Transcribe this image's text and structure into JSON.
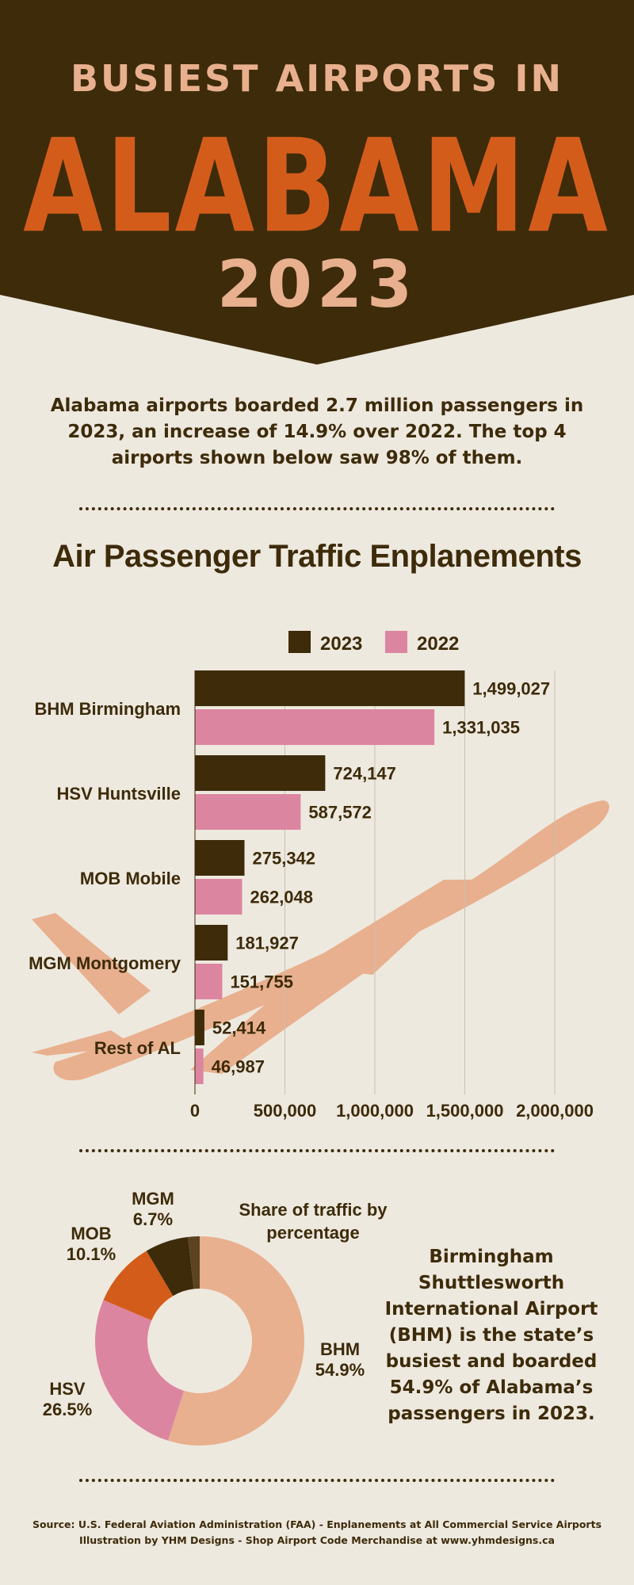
{
  "header": {
    "line1": "BUSIEST AIRPORTS IN",
    "line2": "ALABAMA",
    "line3": "2023"
  },
  "intro": "Alabama airports boarded 2.7 million passengers in 2023, an increase of 14.9% over 2022. The top 4 airports shown below saw 98% of them.",
  "colors": {
    "dark_brown": "#3D2B0A",
    "orange": "#D45C1A",
    "peach": "#E8B08E",
    "pink": "#DC85A0",
    "background": "#EEE9DF"
  },
  "chart_data": [
    {
      "type": "bar",
      "orientation": "horizontal",
      "title": "Air Passenger Traffic Enplanements",
      "categories": [
        "BHM Birmingham",
        "HSV Huntsville",
        "MOB Mobile",
        "MGM Montgomery",
        "Rest of AL"
      ],
      "series": [
        {
          "name": "2023",
          "values": [
            1499027,
            724147,
            275342,
            181927,
            52414
          ],
          "value_labels": [
            "1,499,027",
            "724,147",
            "275,342",
            "181,927",
            "52,414"
          ],
          "color": "#3D2B0A"
        },
        {
          "name": "2022",
          "values": [
            1331035,
            587572,
            262048,
            151755,
            46987
          ],
          "value_labels": [
            "1,331,035",
            "587,572",
            "262,048",
            "151,755",
            "46,987"
          ],
          "color": "#DC85A0"
        }
      ],
      "xlim": [
        0,
        2000000
      ],
      "xticks": [
        0,
        500000,
        1000000,
        1500000,
        2000000
      ],
      "xtick_labels": [
        "0",
        "500,000",
        "1,000,000",
        "1,500,000",
        "2,000,000"
      ],
      "grid": "vertical",
      "legend": "top"
    },
    {
      "type": "pie",
      "style": "donut",
      "title": "Share of traffic by percentage",
      "slices": [
        {
          "label": "BHM",
          "value": 54.9,
          "value_label": "54.9%",
          "color": "#E8B08E"
        },
        {
          "label": "HSV",
          "value": 26.5,
          "value_label": "26.5%",
          "color": "#DC85A0"
        },
        {
          "label": "MOB",
          "value": 10.1,
          "value_label": "10.1%",
          "color": "#D45C1A"
        },
        {
          "label": "MGM",
          "value": 6.7,
          "value_label": "6.7%",
          "color": "#3D2B0A"
        },
        {
          "label": "",
          "value": 1.8,
          "color": "#5C4420"
        }
      ]
    }
  ],
  "side_note": "Birmingham Shuttlesworth International Airport (BHM) is the state’s busiest and boarded 54.9% of Alabama’s passengers in 2023.",
  "footer": {
    "source": "Source: U.S. Federal Aviation Administration (FAA) - Enplanements at All Commercial Service Airports",
    "credit": "Illustration by YHM Designs - Shop Airport Code Merchandise at www.yhmdesigns.ca"
  }
}
